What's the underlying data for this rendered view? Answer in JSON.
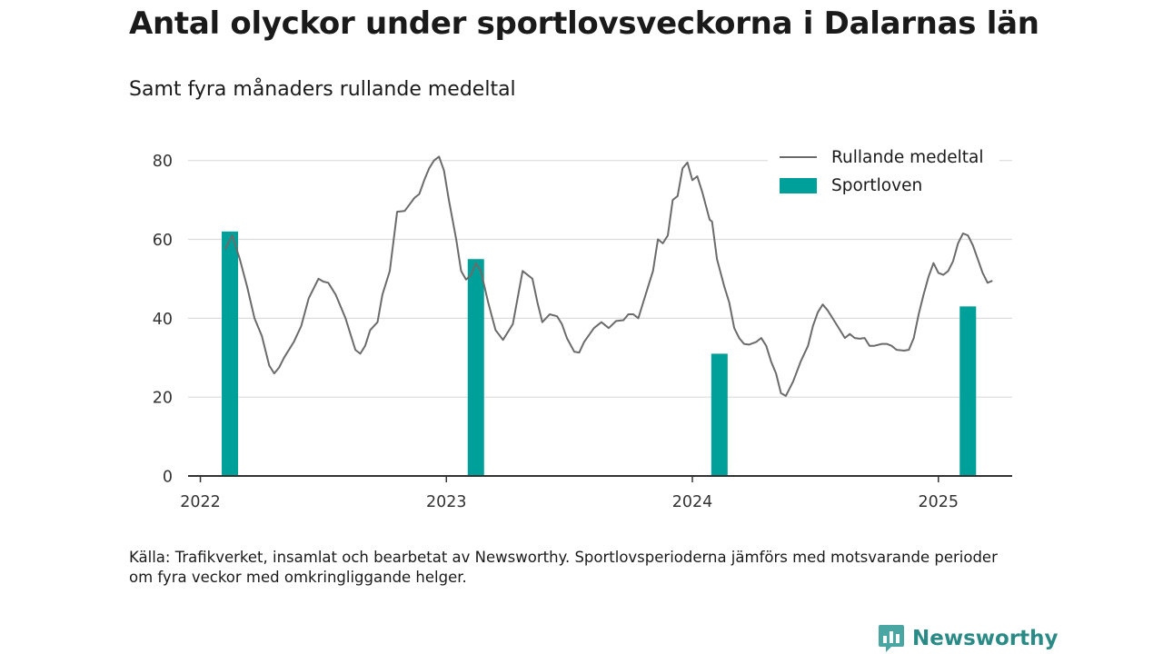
{
  "title": "Antal olyckor under sportlovsveckorna i Dalarnas län",
  "subtitle": "Samt fyra månaders rullande medeltal",
  "footnote": "Källa: Trafikverket, insamlat och bearbetat av Newsworthy. Sportlovsperioderna jämförs med motsvarande perioder om fyra veckor med omkringliggande helger.",
  "logo": {
    "text": "Newsworthy",
    "icon": "newsworthy-chart-icon"
  },
  "colors": {
    "line": "#6b6b6b",
    "bar": "#00a09a",
    "grid": "#dcdcdc",
    "axis": "#333333"
  },
  "chart_data": {
    "type": "bar+line",
    "xlim": [
      2021.95,
      2025.3
    ],
    "ylim": [
      0,
      85
    ],
    "yticks": [
      0,
      20,
      40,
      60,
      80
    ],
    "ytick_labels": [
      "0",
      "20",
      "40",
      "60",
      "80"
    ],
    "xticks": [
      2022,
      2023,
      2024,
      2025
    ],
    "xtick_labels": [
      "2022",
      "2023",
      "2024",
      "2025"
    ],
    "grid": "horizontal",
    "legend": {
      "position": "top-right",
      "entries": [
        {
          "label": "Rullande medeltal",
          "kind": "line"
        },
        {
          "label": "Sportloven",
          "kind": "bar"
        }
      ]
    },
    "bars": {
      "name": "Sportloven",
      "x": [
        2022.12,
        2023.12,
        2024.11,
        2025.12
      ],
      "values": [
        62,
        55,
        31,
        43
      ]
    },
    "line": {
      "name": "Rullande medeltal",
      "points": [
        [
          2022.1,
          57.5
        ],
        [
          2022.13,
          61
        ],
        [
          2022.16,
          55
        ],
        [
          2022.19,
          48
        ],
        [
          2022.22,
          40
        ],
        [
          2022.25,
          35.5
        ],
        [
          2022.28,
          28
        ],
        [
          2022.3,
          26
        ],
        [
          2022.32,
          27.5
        ],
        [
          2022.34,
          30
        ],
        [
          2022.38,
          34
        ],
        [
          2022.41,
          38
        ],
        [
          2022.44,
          45
        ],
        [
          2022.48,
          50
        ],
        [
          2022.5,
          49.3
        ],
        [
          2022.52,
          49
        ],
        [
          2022.55,
          46
        ],
        [
          2022.59,
          40
        ],
        [
          2022.63,
          32
        ],
        [
          2022.65,
          31
        ],
        [
          2022.67,
          33
        ],
        [
          2022.69,
          37
        ],
        [
          2022.72,
          39
        ],
        [
          2022.74,
          46
        ],
        [
          2022.77,
          52
        ],
        [
          2022.8,
          67
        ],
        [
          2022.83,
          67.2
        ],
        [
          2022.84,
          68
        ],
        [
          2022.87,
          70.5
        ],
        [
          2022.89,
          71.5
        ],
        [
          2022.91,
          75
        ],
        [
          2022.93,
          78
        ],
        [
          2022.95,
          80
        ],
        [
          2022.97,
          81
        ],
        [
          2022.99,
          77.5
        ],
        [
          2023.01,
          70
        ],
        [
          2023.04,
          60
        ],
        [
          2023.06,
          52
        ],
        [
          2023.08,
          49.8
        ],
        [
          2023.1,
          51
        ],
        [
          2023.12,
          54
        ],
        [
          2023.14,
          52
        ],
        [
          2023.17,
          44
        ],
        [
          2023.2,
          37
        ],
        [
          2023.23,
          34.5
        ],
        [
          2023.27,
          38.5
        ],
        [
          2023.31,
          52
        ],
        [
          2023.35,
          50
        ],
        [
          2023.37,
          44
        ],
        [
          2023.39,
          39
        ],
        [
          2023.42,
          41
        ],
        [
          2023.45,
          40.5
        ],
        [
          2023.47,
          38.5
        ],
        [
          2023.49,
          35
        ],
        [
          2023.52,
          31.5
        ],
        [
          2023.54,
          31.3
        ],
        [
          2023.56,
          34
        ],
        [
          2023.6,
          37.5
        ],
        [
          2023.63,
          39
        ],
        [
          2023.66,
          37.5
        ],
        [
          2023.69,
          39.3
        ],
        [
          2023.72,
          39.5
        ],
        [
          2023.74,
          41
        ],
        [
          2023.76,
          41
        ],
        [
          2023.78,
          40
        ],
        [
          2023.8,
          44
        ],
        [
          2023.82,
          48
        ],
        [
          2023.84,
          52
        ],
        [
          2023.86,
          60
        ],
        [
          2023.88,
          59
        ],
        [
          2023.9,
          61
        ],
        [
          2023.92,
          70
        ],
        [
          2023.94,
          71
        ],
        [
          2023.96,
          78
        ],
        [
          2023.98,
          79.5
        ],
        [
          2024.0,
          75
        ],
        [
          2024.02,
          76
        ],
        [
          2024.04,
          72
        ],
        [
          2024.07,
          65
        ],
        [
          2024.08,
          64.5
        ],
        [
          2024.1,
          55
        ],
        [
          2024.13,
          48
        ],
        [
          2024.15,
          44
        ],
        [
          2024.17,
          37.5
        ],
        [
          2024.19,
          35
        ],
        [
          2024.21,
          33.5
        ],
        [
          2024.23,
          33.3
        ],
        [
          2024.26,
          34
        ],
        [
          2024.28,
          35
        ],
        [
          2024.3,
          33
        ],
        [
          2024.32,
          29
        ],
        [
          2024.34,
          26
        ],
        [
          2024.36,
          21
        ],
        [
          2024.38,
          20.3
        ],
        [
          2024.41,
          24
        ],
        [
          2024.44,
          29
        ],
        [
          2024.47,
          33
        ],
        [
          2024.49,
          38
        ],
        [
          2024.51,
          41.5
        ],
        [
          2024.53,
          43.5
        ],
        [
          2024.55,
          42
        ],
        [
          2024.57,
          40
        ],
        [
          2024.6,
          37
        ],
        [
          2024.62,
          35
        ],
        [
          2024.64,
          36
        ],
        [
          2024.66,
          35
        ],
        [
          2024.68,
          34.8
        ],
        [
          2024.7,
          35
        ],
        [
          2024.72,
          33
        ],
        [
          2024.74,
          33
        ],
        [
          2024.77,
          33.5
        ],
        [
          2024.79,
          33.5
        ],
        [
          2024.81,
          33
        ],
        [
          2024.83,
          32
        ],
        [
          2024.86,
          31.8
        ],
        [
          2024.88,
          32
        ],
        [
          2024.9,
          35
        ],
        [
          2024.92,
          41
        ],
        [
          2024.94,
          46
        ],
        [
          2024.96,
          50.5
        ],
        [
          2024.98,
          54
        ],
        [
          2025.0,
          51.5
        ],
        [
          2025.02,
          51
        ],
        [
          2025.04,
          52
        ],
        [
          2025.06,
          54.5
        ],
        [
          2025.08,
          59
        ],
        [
          2025.1,
          61.5
        ],
        [
          2025.12,
          61
        ],
        [
          2025.14,
          58.5
        ],
        [
          2025.16,
          55
        ],
        [
          2025.18,
          51.5
        ],
        [
          2025.2,
          49
        ],
        [
          2025.22,
          49.5
        ]
      ]
    }
  }
}
